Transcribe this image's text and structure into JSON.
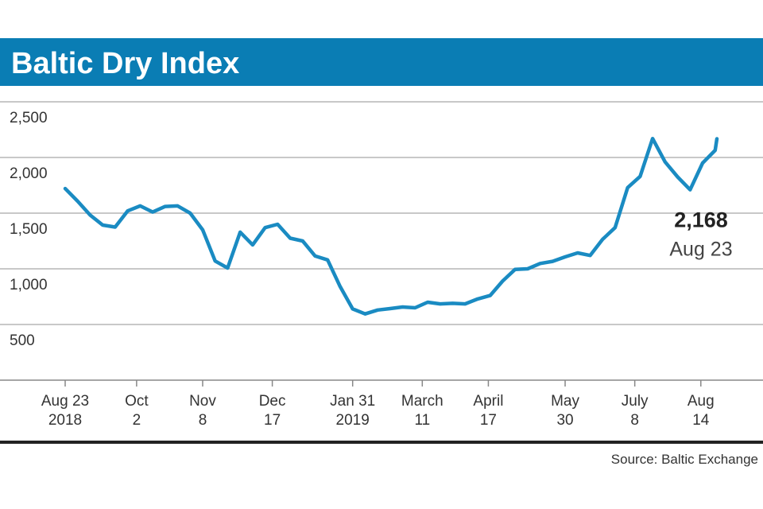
{
  "chart_data": {
    "type": "line",
    "title": "Baltic Dry Index",
    "source": "Source: Baltic Exchange",
    "ylim": [
      0,
      2500
    ],
    "yticks": [
      500,
      {
        "value": 1000,
        "label": "1,000"
      },
      {
        "value": 1500,
        "label": "1,500"
      },
      {
        "value": 2000,
        "label": "2,000"
      },
      {
        "value": 2500,
        "label": "2,500"
      }
    ],
    "xlim": [
      "2018-08-23",
      "2019-08-23"
    ],
    "xticks": [
      {
        "value": "2018-08-23",
        "label": [
          "Aug 23",
          "2018"
        ]
      },
      {
        "value": "2018-10-02",
        "label": [
          "Oct",
          "2"
        ]
      },
      {
        "value": "2018-11-08",
        "label": [
          "Nov",
          "8"
        ]
      },
      {
        "value": "2018-12-17",
        "label": [
          "Dec",
          "17"
        ]
      },
      {
        "value": "2019-01-31",
        "label": [
          "Jan 31",
          "2019"
        ]
      },
      {
        "value": "2019-03-11",
        "label": [
          "March",
          "11"
        ]
      },
      {
        "value": "2019-04-17",
        "label": [
          "April",
          "17"
        ]
      },
      {
        "value": "2019-05-30",
        "label": [
          "May",
          "30"
        ]
      },
      {
        "value": "2019-07-08",
        "label": [
          "July",
          "8"
        ]
      },
      {
        "value": "2019-08-14",
        "label": [
          "Aug",
          "14"
        ]
      }
    ],
    "grid": true,
    "x": [
      "2018-08-23",
      "2018-08-30",
      "2018-09-06",
      "2018-09-13",
      "2018-09-20",
      "2018-09-27",
      "2018-10-04",
      "2018-10-11",
      "2018-10-18",
      "2018-10-25",
      "2018-11-01",
      "2018-11-08",
      "2018-11-15",
      "2018-11-22",
      "2018-11-29",
      "2018-12-06",
      "2018-12-13",
      "2018-12-20",
      "2018-12-27",
      "2019-01-03",
      "2019-01-10",
      "2019-01-17",
      "2019-01-24",
      "2019-01-31",
      "2019-02-07",
      "2019-02-14",
      "2019-02-21",
      "2019-02-28",
      "2019-03-07",
      "2019-03-14",
      "2019-03-21",
      "2019-03-28",
      "2019-04-04",
      "2019-04-11",
      "2019-04-18",
      "2019-04-25",
      "2019-05-02",
      "2019-05-09",
      "2019-05-16",
      "2019-05-23",
      "2019-05-30",
      "2019-06-06",
      "2019-06-13",
      "2019-06-20",
      "2019-06-27",
      "2019-07-04",
      "2019-07-11",
      "2019-07-18",
      "2019-07-25",
      "2019-08-01",
      "2019-08-08",
      "2019-08-15",
      "2019-08-22",
      "2019-08-23"
    ],
    "series": [
      {
        "color": "#1a8bc2",
        "values": [
          1721,
          1607,
          1482,
          1393,
          1375,
          1520,
          1565,
          1510,
          1560,
          1565,
          1500,
          1350,
          1070,
          1007,
          1329,
          1215,
          1370,
          1400,
          1275,
          1250,
          1115,
          1080,
          840,
          640,
          595,
          630,
          643,
          657,
          650,
          700,
          685,
          690,
          685,
          729,
          760,
          890,
          995,
          1000,
          1048,
          1067,
          1107,
          1143,
          1120,
          1265,
          1370,
          1729,
          1830,
          2170,
          1960,
          1825,
          1710,
          1950,
          2064,
          2168
        ],
        "value_labels": [
          null,
          null,
          null,
          null,
          null,
          null,
          null,
          null,
          null,
          null,
          null,
          null,
          null,
          null,
          null,
          null,
          null,
          null,
          null,
          null,
          null,
          null,
          null,
          null,
          null,
          null,
          null,
          null,
          null,
          null,
          null,
          null,
          null,
          null,
          null,
          null,
          null,
          null,
          null,
          null,
          null,
          null,
          null,
          null,
          null,
          null,
          null,
          null,
          null,
          null,
          null,
          null,
          null,
          "2,168"
        ]
      }
    ],
    "end_label_date": "Aug 23"
  }
}
